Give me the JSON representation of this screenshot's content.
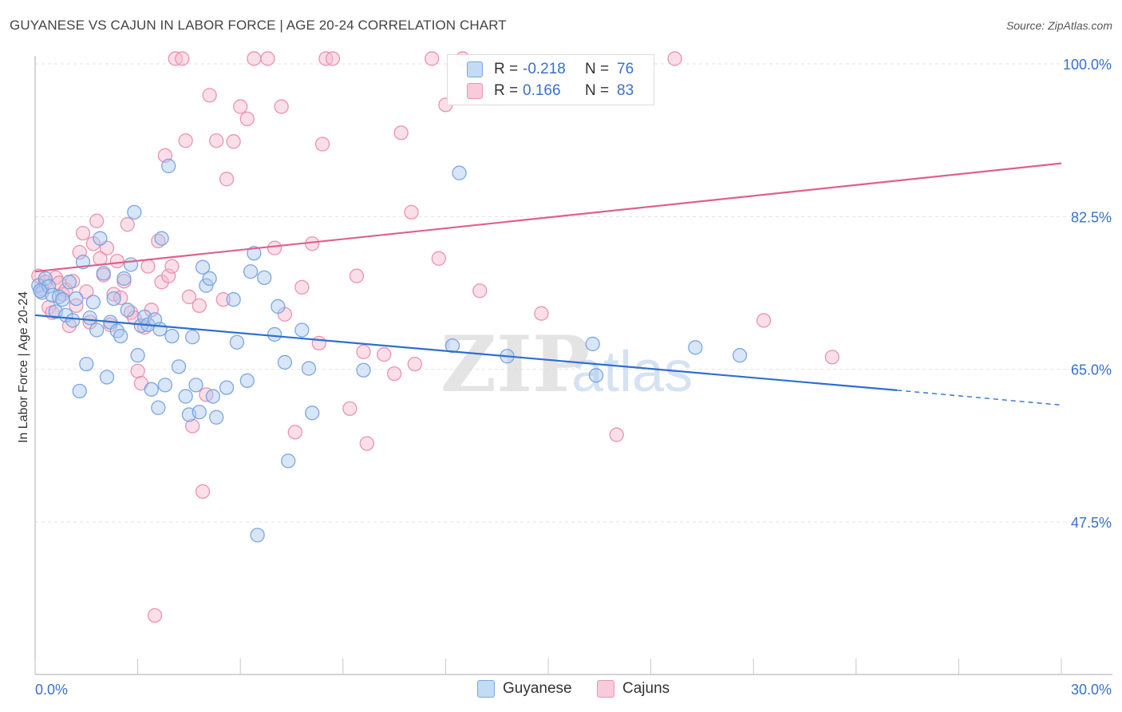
{
  "header": {
    "title": "GUYANESE VS CAJUN IN LABOR FORCE | AGE 20-24 CORRELATION CHART",
    "source": "Source: ZipAtlas.com"
  },
  "watermark": {
    "part1": "ZIP",
    "part2": "atlas"
  },
  "legend": {
    "rows": [
      {
        "r_label": "R =",
        "r_value": "-0.218",
        "n_label": "N =",
        "n_value": "76",
        "color": "#a9c8f0",
        "border": "#6f9fe0"
      },
      {
        "r_label": "R =",
        "r_value": "0.166",
        "n_label": "N =",
        "n_value": "83",
        "color": "#f6b8cc",
        "border": "#e88aa8"
      }
    ]
  },
  "bottom_legend": {
    "items": [
      "Guyanese",
      "Cajuns"
    ]
  },
  "chart_data": {
    "type": "scatter",
    "title": "GUYANESE VS CAJUN IN LABOR FORCE | AGE 20-24 CORRELATION CHART",
    "xlabel": "",
    "ylabel": "In Labor Force | Age 20-24",
    "xlim": [
      0,
      30
    ],
    "ylim": [
      30,
      102
    ],
    "x_ticks": [
      "0.0%",
      "30.0%"
    ],
    "y_ticks": [
      {
        "value": 100,
        "label": "100.0%"
      },
      {
        "value": 82.5,
        "label": "82.5%"
      },
      {
        "value": 65,
        "label": "65.0%"
      },
      {
        "value": 47.5,
        "label": "47.5%"
      }
    ],
    "grid": true,
    "legend_position": "top-center",
    "series": [
      {
        "name": "Guyanese",
        "color": "#6f9fe0",
        "fill": "#a9c8f0",
        "trend": {
          "x0": 0,
          "y0": 71.2,
          "x1": 25.2,
          "y1": 62.6,
          "dash_to_x": 30,
          "dash_to_y": 60.9,
          "color": "#2f6fcf"
        },
        "points": [
          [
            0.1,
            74.6
          ],
          [
            0.2,
            73.8
          ],
          [
            0.3,
            75.4
          ],
          [
            0.4,
            74.5
          ],
          [
            0.5,
            73.5
          ],
          [
            0.6,
            71.6
          ],
          [
            0.7,
            73.3
          ],
          [
            0.8,
            73.0
          ],
          [
            0.9,
            71.2
          ],
          [
            1.0,
            75.0
          ],
          [
            1.1,
            70.6
          ],
          [
            1.2,
            73.1
          ],
          [
            1.3,
            62.5
          ],
          [
            1.4,
            77.3
          ],
          [
            1.5,
            65.6
          ],
          [
            1.6,
            70.9
          ],
          [
            1.7,
            72.7
          ],
          [
            1.8,
            69.5
          ],
          [
            1.9,
            80.0
          ],
          [
            2.0,
            76.0
          ],
          [
            2.1,
            64.1
          ],
          [
            2.2,
            70.4
          ],
          [
            2.3,
            73.1
          ],
          [
            2.4,
            69.4
          ],
          [
            2.5,
            68.8
          ],
          [
            2.6,
            75.4
          ],
          [
            2.7,
            71.8
          ],
          [
            2.8,
            77.0
          ],
          [
            2.9,
            83.0
          ],
          [
            3.0,
            66.6
          ],
          [
            3.1,
            70.0
          ],
          [
            3.2,
            71.0
          ],
          [
            3.3,
            70.1
          ],
          [
            3.4,
            62.7
          ],
          [
            3.5,
            70.7
          ],
          [
            3.6,
            60.6
          ],
          [
            3.7,
            80.0
          ],
          [
            3.8,
            63.2
          ],
          [
            3.9,
            88.3
          ],
          [
            4.0,
            68.8
          ],
          [
            4.2,
            65.3
          ],
          [
            4.4,
            61.9
          ],
          [
            4.5,
            59.8
          ],
          [
            4.6,
            68.7
          ],
          [
            4.7,
            63.2
          ],
          [
            4.8,
            60.1
          ],
          [
            4.9,
            76.7
          ],
          [
            5.0,
            74.6
          ],
          [
            5.1,
            75.4
          ],
          [
            5.2,
            61.9
          ],
          [
            5.3,
            59.5
          ],
          [
            5.6,
            62.9
          ],
          [
            5.8,
            73.0
          ],
          [
            5.9,
            68.1
          ],
          [
            6.2,
            63.7
          ],
          [
            6.3,
            76.2
          ],
          [
            6.4,
            78.3
          ],
          [
            6.5,
            46.0
          ],
          [
            6.7,
            75.5
          ],
          [
            7.0,
            69.0
          ],
          [
            7.1,
            72.2
          ],
          [
            7.3,
            65.8
          ],
          [
            7.4,
            54.5
          ],
          [
            7.8,
            69.5
          ],
          [
            8.0,
            65.1
          ],
          [
            8.1,
            60.0
          ],
          [
            9.6,
            64.9
          ],
          [
            12.2,
            67.7
          ],
          [
            12.4,
            87.5
          ],
          [
            13.8,
            66.5
          ],
          [
            16.3,
            67.9
          ],
          [
            16.4,
            64.3
          ],
          [
            19.3,
            67.5
          ],
          [
            20.6,
            66.6
          ],
          [
            0.15,
            74.0
          ],
          [
            3.65,
            69.6
          ]
        ]
      },
      {
        "name": "Cajuns",
        "color": "#e88aa8",
        "fill": "#f6b8cc",
        "trend": {
          "x0": 0,
          "y0": 76.2,
          "x1": 30,
          "y1": 88.6,
          "color": "#e0608a"
        },
        "points": [
          [
            0.1,
            75.7
          ],
          [
            0.2,
            74.2
          ],
          [
            0.3,
            75.0
          ],
          [
            0.4,
            72.1
          ],
          [
            0.5,
            71.5
          ],
          [
            0.6,
            75.5
          ],
          [
            0.7,
            74.9
          ],
          [
            0.8,
            73.6
          ],
          [
            0.9,
            74.1
          ],
          [
            1.0,
            70.0
          ],
          [
            1.1,
            75.1
          ],
          [
            1.2,
            72.3
          ],
          [
            1.3,
            78.4
          ],
          [
            1.4,
            80.6
          ],
          [
            1.5,
            73.9
          ],
          [
            1.6,
            70.4
          ],
          [
            1.7,
            79.4
          ],
          [
            1.8,
            82.0
          ],
          [
            1.9,
            77.7
          ],
          [
            2.0,
            75.8
          ],
          [
            2.1,
            78.9
          ],
          [
            2.2,
            70.1
          ],
          [
            2.3,
            73.6
          ],
          [
            2.4,
            77.4
          ],
          [
            2.5,
            73.2
          ],
          [
            2.6,
            75.1
          ],
          [
            2.7,
            81.6
          ],
          [
            2.8,
            71.5
          ],
          [
            2.9,
            70.9
          ],
          [
            3.0,
            64.8
          ],
          [
            3.1,
            63.4
          ],
          [
            3.2,
            69.8
          ],
          [
            3.3,
            76.8
          ],
          [
            3.4,
            71.8
          ],
          [
            3.5,
            36.8
          ],
          [
            3.6,
            79.7
          ],
          [
            3.7,
            75.0
          ],
          [
            3.8,
            89.5
          ],
          [
            3.9,
            75.7
          ],
          [
            4.0,
            76.8
          ],
          [
            4.1,
            100.6
          ],
          [
            4.3,
            100.6
          ],
          [
            4.4,
            91.2
          ],
          [
            4.5,
            73.3
          ],
          [
            4.6,
            58.5
          ],
          [
            4.8,
            72.3
          ],
          [
            4.9,
            51.0
          ],
          [
            5.0,
            62.1
          ],
          [
            5.1,
            96.4
          ],
          [
            5.3,
            91.2
          ],
          [
            5.5,
            73.0
          ],
          [
            5.6,
            86.8
          ],
          [
            5.8,
            91.1
          ],
          [
            6.0,
            95.1
          ],
          [
            6.2,
            93.7
          ],
          [
            6.4,
            100.6
          ],
          [
            6.8,
            100.6
          ],
          [
            7.0,
            78.9
          ],
          [
            7.2,
            95.1
          ],
          [
            7.3,
            71.3
          ],
          [
            7.6,
            57.8
          ],
          [
            7.8,
            74.4
          ],
          [
            8.1,
            79.4
          ],
          [
            8.3,
            68.0
          ],
          [
            8.4,
            90.8
          ],
          [
            8.5,
            100.6
          ],
          [
            8.7,
            100.6
          ],
          [
            9.2,
            60.5
          ],
          [
            9.4,
            75.7
          ],
          [
            9.6,
            67.0
          ],
          [
            9.7,
            56.5
          ],
          [
            10.2,
            66.7
          ],
          [
            10.5,
            64.5
          ],
          [
            10.7,
            92.1
          ],
          [
            11.0,
            83.0
          ],
          [
            11.1,
            65.6
          ],
          [
            11.6,
            100.6
          ],
          [
            11.8,
            77.7
          ],
          [
            12.5,
            100.6
          ],
          [
            13.0,
            74.0
          ],
          [
            14.8,
            71.4
          ],
          [
            18.7,
            100.6
          ],
          [
            21.3,
            70.6
          ]
        ]
      }
    ],
    "extra_cajun_points": [
      [
        12.0,
        95.3
      ],
      [
        17.0,
        57.5
      ],
      [
        23.3,
        66.4
      ]
    ]
  }
}
